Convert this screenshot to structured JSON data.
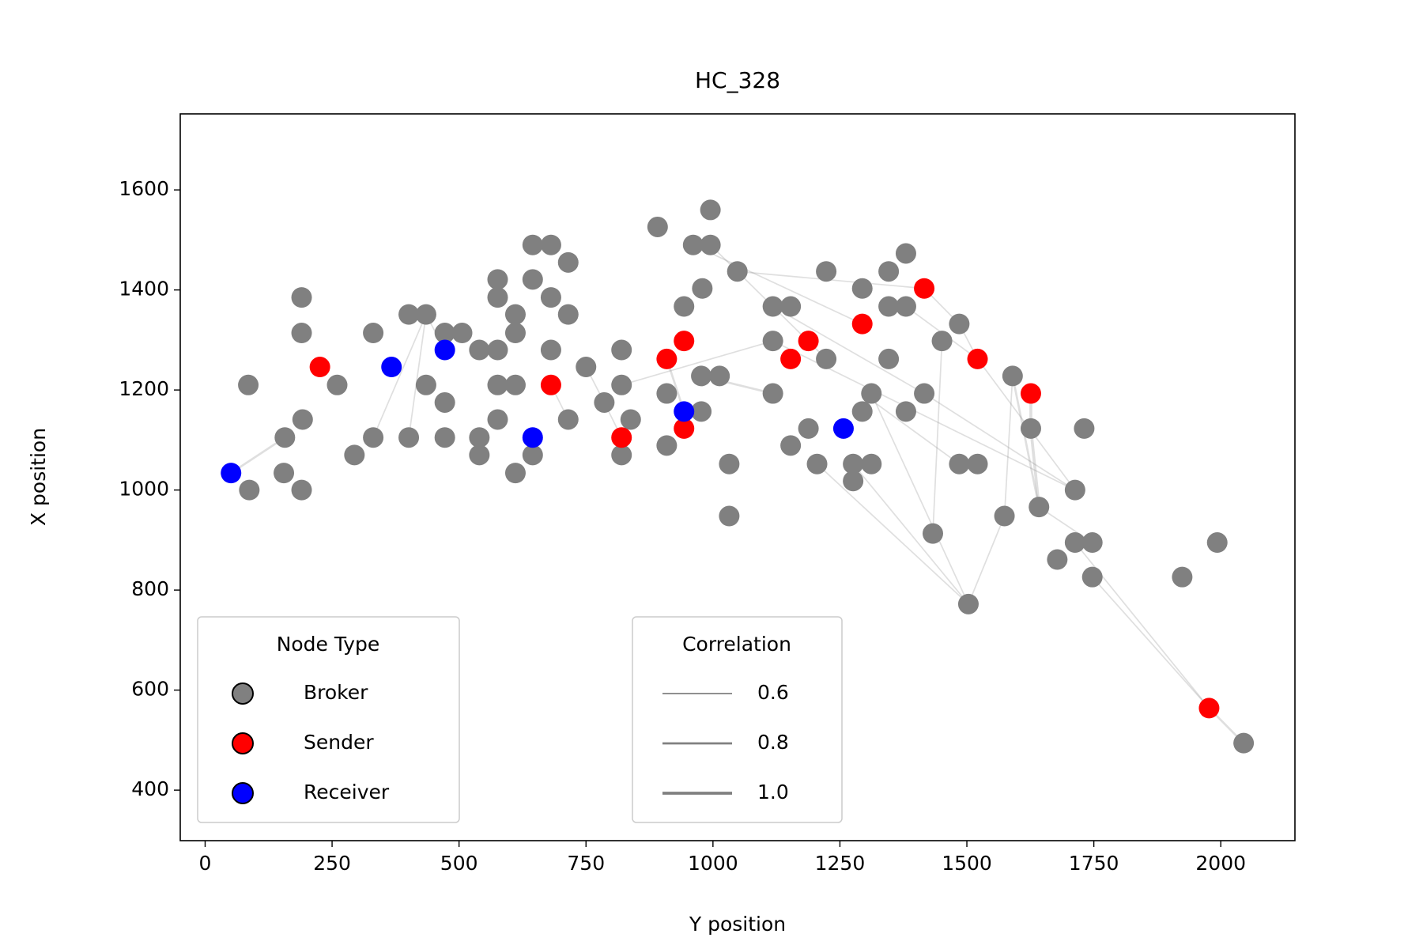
{
  "chart_data": {
    "type": "network",
    "title": "HC_328",
    "xlabel": "Y position",
    "ylabel": "X position",
    "xlim": [
      -49,
      2146
    ],
    "ylim": [
      299,
      1752
    ],
    "xticks": [
      0,
      250,
      500,
      750,
      1000,
      1250,
      1500,
      1750,
      2000
    ],
    "yticks": [
      400,
      600,
      800,
      1000,
      1200,
      1400,
      1600
    ],
    "legend_title": "Node Type",
    "series": [
      {
        "name": "Broker",
        "color": "#808080",
        "x": [
          85,
          87,
          190,
          190,
          260,
          157,
          192,
          155,
          190,
          294,
          331,
          331,
          401,
          435,
          401,
          435,
          472,
          472,
          472,
          506,
          540,
          540,
          540,
          576,
          576,
          576,
          576,
          576,
          611,
          611,
          611,
          611,
          645,
          645,
          645,
          681,
          681,
          681,
          715,
          715,
          715,
          750,
          786,
          820,
          820,
          820,
          838,
          891,
          909,
          909,
          943,
          961,
          979,
          977,
          977,
          995,
          995,
          1013,
          1048,
          1032,
          1032,
          1118,
          1118,
          1118,
          1153,
          1153,
          1188,
          1205,
          1223,
          1223,
          1276,
          1276,
          1294,
          1312,
          1294,
          1312,
          1346,
          1346,
          1346,
          1380,
          1380,
          1380,
          1416,
          1433,
          1451,
          1485,
          1485,
          1503,
          1521,
          1574,
          1590,
          1626,
          1642,
          1678,
          1713,
          1713,
          1731,
          1747,
          1747,
          1924,
          1993,
          2045
        ],
        "values": [
          1210,
          1000,
          1385,
          1314,
          1210,
          1105,
          1141,
          1034,
          1000,
          1070,
          1314,
          1105,
          1351,
          1351,
          1105,
          1210,
          1175,
          1105,
          1314,
          1314,
          1280,
          1105,
          1070,
          1421,
          1385,
          1280,
          1210,
          1141,
          1351,
          1314,
          1210,
          1034,
          1490,
          1421,
          1070,
          1490,
          1385,
          1280,
          1455,
          1351,
          1141,
          1246,
          1175,
          1280,
          1210,
          1070,
          1141,
          1526,
          1193,
          1089,
          1367,
          1490,
          1403,
          1228,
          1157,
          1560,
          1490,
          1228,
          1437,
          1052,
          948,
          1367,
          1298,
          1193,
          1367,
          1089,
          1123,
          1052,
          1262,
          1437,
          1052,
          1018,
          1403,
          1193,
          1157,
          1052,
          1367,
          1437,
          1262,
          1473,
          1367,
          1157,
          1193,
          913,
          1298,
          1332,
          1052,
          772,
          1052,
          948,
          1228,
          1123,
          966,
          861,
          1000,
          895,
          1123,
          895,
          826,
          826,
          895,
          494
        ]
      },
      {
        "name": "Sender",
        "color": "#ff0000",
        "x": [
          226,
          681,
          820,
          909,
          943,
          943,
          1153,
          1188,
          1294,
          1416,
          1521,
          1626,
          1977
        ],
        "values": [
          1246,
          1210,
          1105,
          1262,
          1298,
          1123,
          1262,
          1298,
          1332,
          1403,
          1262,
          1193,
          564
        ]
      },
      {
        "name": "Receiver",
        "color": "#0000ff",
        "x": [
          51,
          367,
          472,
          645,
          943,
          1257
        ],
        "values": [
          1034,
          1246,
          1280,
          1105,
          1157,
          1123
        ]
      }
    ],
    "edge_color": "#808080",
    "edges": [
      {
        "x": [
          51,
          157
        ],
        "y": [
          1034,
          1105
        ],
        "correlation": 0.8
      },
      {
        "x": [
          331,
          435
        ],
        "y": [
          1105,
          1351
        ],
        "correlation": 0.6
      },
      {
        "x": [
          401,
          435
        ],
        "y": [
          1105,
          1351
        ],
        "correlation": 0.6
      },
      {
        "x": [
          435,
          472
        ],
        "y": [
          1351,
          1280
        ],
        "correlation": 0.6
      },
      {
        "x": [
          681,
          715
        ],
        "y": [
          1210,
          1141
        ],
        "correlation": 0.6
      },
      {
        "x": [
          750,
          786
        ],
        "y": [
          1246,
          1175
        ],
        "correlation": 0.6
      },
      {
        "x": [
          786,
          820
        ],
        "y": [
          1175,
          1105
        ],
        "correlation": 0.6
      },
      {
        "x": [
          820,
          838
        ],
        "y": [
          1105,
          1141
        ],
        "correlation": 0.6
      },
      {
        "x": [
          909,
          943
        ],
        "y": [
          1262,
          1157
        ],
        "correlation": 0.8
      },
      {
        "x": [
          820,
          1118
        ],
        "y": [
          1210,
          1298
        ],
        "correlation": 0.6
      },
      {
        "x": [
          977,
          1118
        ],
        "y": [
          1228,
          1193
        ],
        "correlation": 0.8
      },
      {
        "x": [
          995,
          1223
        ],
        "y": [
          1490,
          1262
        ],
        "correlation": 0.6
      },
      {
        "x": [
          961,
          1294
        ],
        "y": [
          1490,
          1332
        ],
        "correlation": 0.6
      },
      {
        "x": [
          1048,
          1416
        ],
        "y": [
          1437,
          1403
        ],
        "correlation": 0.6
      },
      {
        "x": [
          1118,
          1713
        ],
        "y": [
          1298,
          1000
        ],
        "correlation": 0.6
      },
      {
        "x": [
          1205,
          1503
        ],
        "y": [
          1052,
          772
        ],
        "correlation": 0.6
      },
      {
        "x": [
          1276,
          1503
        ],
        "y": [
          1052,
          772
        ],
        "correlation": 0.6
      },
      {
        "x": [
          1312,
          1503
        ],
        "y": [
          1193,
          772
        ],
        "correlation": 0.6
      },
      {
        "x": [
          1503,
          1574
        ],
        "y": [
          772,
          948
        ],
        "correlation": 0.6
      },
      {
        "x": [
          1574,
          1590
        ],
        "y": [
          948,
          1228
        ],
        "correlation": 0.6
      },
      {
        "x": [
          1590,
          1642
        ],
        "y": [
          1228,
          966
        ],
        "correlation": 0.8
      },
      {
        "x": [
          1626,
          1626
        ],
        "y": [
          1193,
          1123
        ],
        "correlation": 1.0
      },
      {
        "x": [
          1626,
          1642
        ],
        "y": [
          1123,
          966
        ],
        "correlation": 1.0
      },
      {
        "x": [
          1416,
          1713
        ],
        "y": [
          1193,
          1000
        ],
        "correlation": 0.6
      },
      {
        "x": [
          1521,
          1713
        ],
        "y": [
          1262,
          1000
        ],
        "correlation": 0.6
      },
      {
        "x": [
          1416,
          1485
        ],
        "y": [
          1403,
          1332
        ],
        "correlation": 0.6
      },
      {
        "x": [
          1485,
          1521
        ],
        "y": [
          1332,
          1262
        ],
        "correlation": 0.6
      },
      {
        "x": [
          1433,
          1451
        ],
        "y": [
          913,
          1298
        ],
        "correlation": 0.6
      },
      {
        "x": [
          1747,
          1977
        ],
        "y": [
          826,
          564
        ],
        "correlation": 0.6
      },
      {
        "x": [
          1977,
          2045
        ],
        "y": [
          564,
          494
        ],
        "correlation": 0.8
      },
      {
        "x": [
          1713,
          1977
        ],
        "y": [
          895,
          564
        ],
        "correlation": 0.6
      },
      {
        "x": [
          1642,
          1747
        ],
        "y": [
          966,
          895
        ],
        "correlation": 0.6
      },
      {
        "x": [
          1380,
          1521
        ],
        "y": [
          1367,
          1262
        ],
        "correlation": 0.6
      },
      {
        "x": [
          1118,
          1416
        ],
        "y": [
          1367,
          1193
        ],
        "correlation": 0.6
      },
      {
        "x": [
          1294,
          1485
        ],
        "y": [
          1193,
          1052
        ],
        "correlation": 0.6
      }
    ],
    "edge_legend": {
      "title": "Correlation",
      "values": [
        0.6,
        0.8,
        {
          "value": 1,
          "label": "1.0"
        }
      ]
    }
  }
}
